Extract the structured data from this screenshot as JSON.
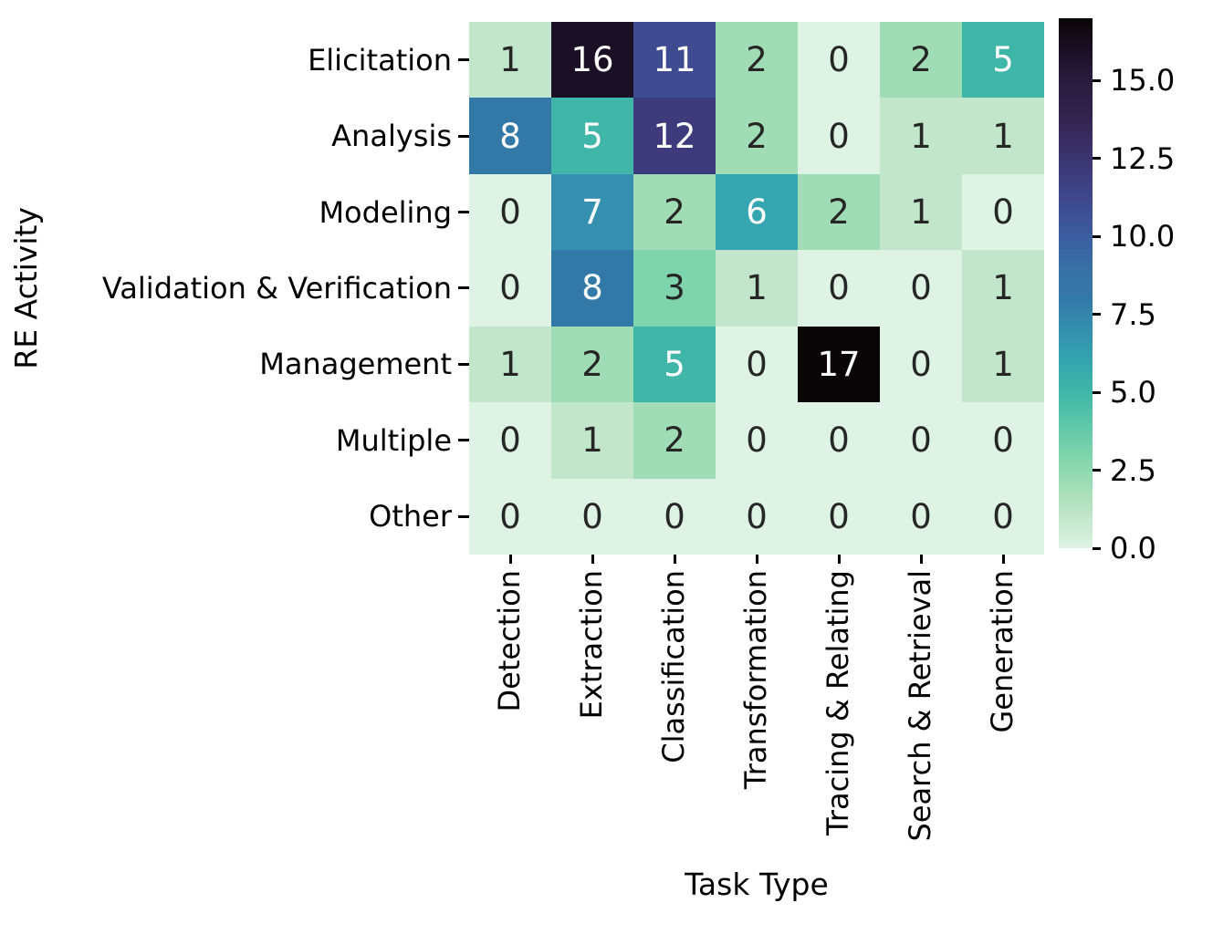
{
  "chart_data": {
    "type": "heatmap",
    "title": "",
    "xlabel": "Task Type",
    "ylabel": "RE Activity",
    "x_categories": [
      "Detection",
      "Extraction",
      "Classification",
      "Transformation",
      "Tracing & Relating",
      "Search & Retrieval",
      "Generation"
    ],
    "y_categories": [
      "Elicitation",
      "Analysis",
      "Modeling",
      "Validation & Verification",
      "Management",
      "Multiple",
      "Other"
    ],
    "values": [
      [
        1,
        16,
        11,
        2,
        0,
        2,
        5
      ],
      [
        8,
        5,
        12,
        2,
        0,
        1,
        1
      ],
      [
        0,
        7,
        2,
        6,
        2,
        1,
        0
      ],
      [
        0,
        8,
        3,
        1,
        0,
        0,
        1
      ],
      [
        1,
        2,
        5,
        0,
        17,
        0,
        1
      ],
      [
        0,
        1,
        2,
        0,
        0,
        0,
        0
      ],
      [
        0,
        0,
        0,
        0,
        0,
        0,
        0
      ]
    ],
    "annotations_shown": true,
    "grid": false,
    "legend_position": "right-colorbar",
    "colorbar": {
      "vmin": 0,
      "vmax": 17,
      "tick_labels": [
        "15.0",
        "12.5",
        "10.0",
        "7.5",
        "5.0",
        "2.5",
        "0.0"
      ],
      "tick_values": [
        15,
        12.5,
        10,
        7.5,
        5,
        2.5,
        0
      ]
    },
    "colors": {
      "colormap_name": "mako-reversed",
      "value_colors": [
        "#DEF3E4",
        "#C2E6CB",
        "#A0DDB6",
        "#7ED4AC",
        "#5DC6A9",
        "#3FB6A8",
        "#35A5AF",
        "#3490AE",
        "#3379A8",
        "#3870A6",
        "#3B5D9E",
        "#3F4B90",
        "#3E3B7C",
        "#392E63",
        "#30224B",
        "#291B3C",
        "#1B0F25",
        "#0A0506"
      ],
      "dark_text": "#262626",
      "light_text": "#ffffff",
      "white_text_min_value": 5,
      "tick_color": "#000000",
      "background": "#ffffff"
    }
  }
}
